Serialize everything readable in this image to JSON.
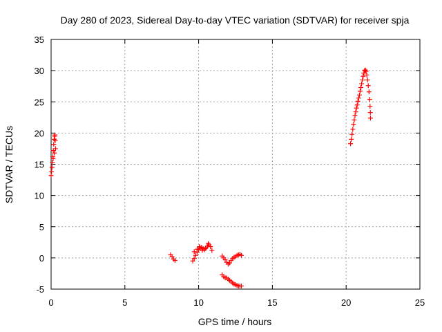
{
  "chart_data": {
    "type": "scatter",
    "title": "Day 280 of 2023, Sidereal Day-to-day VTEC variation (SDTVAR) for receiver spja",
    "xlabel": "GPS time / hours",
    "ylabel": "SDTVAR / TECUs",
    "xlim": [
      0,
      25
    ],
    "ylim": [
      -5,
      35
    ],
    "xticks": [
      0,
      5,
      10,
      15,
      20,
      25
    ],
    "yticks": [
      -5,
      0,
      5,
      10,
      15,
      20,
      25,
      30,
      35
    ],
    "xtick_labels": [
      "0",
      "5",
      "10",
      "15",
      "20",
      "25"
    ],
    "ytick_labels": [
      "-5",
      "0",
      "5",
      "10",
      "15",
      "20",
      "25",
      "30",
      "35"
    ],
    "grid": true,
    "marker": "+",
    "color": "#ff0000",
    "series": [
      {
        "name": "seg1",
        "points": [
          [
            0.0,
            13.2
          ],
          [
            0.03,
            13.8
          ],
          [
            0.06,
            14.5
          ],
          [
            0.09,
            15.3
          ],
          [
            0.12,
            16.2
          ],
          [
            0.15,
            17.2
          ],
          [
            0.18,
            18.2
          ],
          [
            0.21,
            19.0
          ],
          [
            0.24,
            19.5
          ],
          [
            0.26,
            19.7
          ],
          [
            0.28,
            18.8
          ],
          [
            0.3,
            17.5
          ],
          [
            0.22,
            16.8
          ],
          [
            0.14,
            15.9
          ]
        ]
      },
      {
        "name": "seg2",
        "points": [
          [
            8.1,
            0.5
          ],
          [
            8.2,
            0.2
          ],
          [
            8.3,
            -0.2
          ],
          [
            8.4,
            -0.4
          ]
        ]
      },
      {
        "name": "seg3",
        "points": [
          [
            9.6,
            -0.5
          ],
          [
            9.7,
            -0.1
          ],
          [
            9.8,
            0.4
          ],
          [
            9.9,
            0.9
          ],
          [
            10.0,
            1.3
          ],
          [
            10.1,
            1.6
          ],
          [
            10.2,
            1.7
          ],
          [
            10.3,
            1.5
          ],
          [
            10.4,
            1.3
          ],
          [
            10.5,
            1.6
          ],
          [
            10.6,
            1.9
          ],
          [
            10.7,
            2.1
          ],
          [
            10.8,
            1.8
          ],
          [
            10.9,
            1.2
          ],
          [
            9.7,
            1.0
          ],
          [
            9.9,
            1.4
          ],
          [
            10.05,
            1.8
          ],
          [
            10.25,
            1.2
          ],
          [
            10.45,
            1.5
          ],
          [
            10.65,
            2.3
          ]
        ]
      },
      {
        "name": "seg4",
        "points": [
          [
            11.6,
            0.3
          ],
          [
            11.7,
            0.0
          ],
          [
            11.8,
            -0.3
          ],
          [
            11.9,
            -0.7
          ],
          [
            12.0,
            -1.0
          ],
          [
            12.1,
            -0.8
          ],
          [
            12.2,
            -0.4
          ],
          [
            12.3,
            -0.1
          ],
          [
            12.4,
            0.1
          ],
          [
            12.5,
            0.2
          ],
          [
            12.6,
            0.4
          ],
          [
            12.7,
            0.5
          ],
          [
            12.8,
            0.6
          ],
          [
            12.9,
            0.4
          ]
        ]
      },
      {
        "name": "seg5",
        "points": [
          [
            11.6,
            -2.7
          ],
          [
            11.7,
            -3.0
          ],
          [
            11.8,
            -3.2
          ],
          [
            11.9,
            -3.2
          ],
          [
            12.0,
            -3.4
          ],
          [
            12.1,
            -3.6
          ],
          [
            12.2,
            -3.8
          ],
          [
            12.3,
            -4.0
          ],
          [
            12.4,
            -4.2
          ],
          [
            12.5,
            -4.3
          ],
          [
            12.6,
            -4.4
          ],
          [
            12.7,
            -4.5
          ],
          [
            12.8,
            -4.5
          ],
          [
            12.9,
            -4.5
          ]
        ]
      },
      {
        "name": "seg6",
        "points": [
          [
            20.3,
            18.3
          ],
          [
            20.35,
            19.0
          ],
          [
            20.4,
            19.8
          ],
          [
            20.45,
            20.6
          ],
          [
            20.5,
            21.4
          ],
          [
            20.55,
            22.1
          ],
          [
            20.6,
            22.8
          ],
          [
            20.65,
            23.4
          ],
          [
            20.7,
            24.0
          ],
          [
            20.75,
            24.5
          ],
          [
            20.8,
            25.1
          ],
          [
            20.85,
            25.6
          ],
          [
            20.9,
            26.1
          ],
          [
            20.95,
            26.7
          ],
          [
            21.0,
            27.3
          ],
          [
            21.05,
            27.9
          ],
          [
            21.1,
            28.5
          ],
          [
            21.15,
            29.1
          ],
          [
            21.2,
            29.6
          ],
          [
            21.25,
            30.0
          ],
          [
            21.3,
            30.1
          ],
          [
            21.35,
            29.9
          ],
          [
            21.4,
            29.3
          ],
          [
            21.45,
            28.5
          ],
          [
            21.5,
            27.6
          ],
          [
            21.55,
            26.6
          ],
          [
            21.6,
            25.4
          ],
          [
            21.62,
            24.3
          ],
          [
            21.64,
            23.3
          ],
          [
            21.65,
            22.4
          ]
        ]
      }
    ]
  }
}
